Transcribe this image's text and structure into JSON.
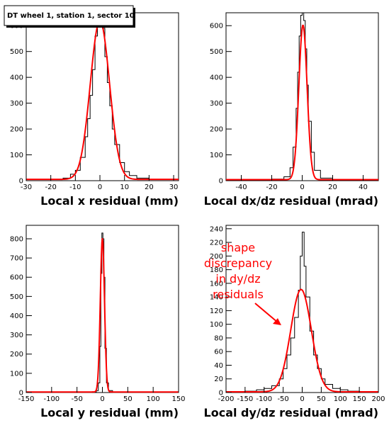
{
  "title": "DT wheel 1, station 1, sector 10",
  "annotation": {
    "lines": [
      "shape",
      "discrepancy",
      "in dy/dz",
      "residuals"
    ],
    "color": "#ff0000"
  },
  "colors": {
    "histogram": "#000000",
    "fit": "#ff0000"
  },
  "chart_data": [
    {
      "type": "histogram",
      "xlabel": "Local x residual (mm)",
      "xlim": [
        -30,
        32
      ],
      "ylim": [
        0,
        650
      ],
      "xticks": [
        -30,
        -20,
        -10,
        0,
        10,
        20,
        30
      ],
      "yticks": [
        0,
        100,
        200,
        300,
        400,
        500,
        600
      ],
      "series": [
        {
          "kind": "histogram",
          "x": [
            -30,
            -25,
            -20,
            -15,
            -12,
            -10,
            -8,
            -6,
            -5,
            -4,
            -3,
            -2,
            -1,
            0,
            1,
            2,
            3,
            4,
            5,
            6,
            8,
            10,
            12,
            15,
            20,
            25,
            30,
            32
          ],
          "y": [
            5,
            5,
            5,
            10,
            25,
            40,
            90,
            170,
            240,
            330,
            430,
            560,
            610,
            640,
            590,
            480,
            380,
            290,
            200,
            140,
            70,
            35,
            20,
            10,
            5,
            5,
            5,
            5
          ]
        },
        {
          "kind": "fit",
          "mu": 0,
          "sigma": 3.9,
          "amp": 615,
          "base": 5
        }
      ]
    },
    {
      "type": "histogram",
      "xlabel": "Local dx/dz residual (mrad)",
      "xlim": [
        -50,
        50
      ],
      "ylim": [
        0,
        650
      ],
      "xticks": [
        -40,
        -20,
        0,
        20,
        40
      ],
      "yticks": [
        0,
        100,
        200,
        300,
        400,
        500,
        600
      ],
      "series": [
        {
          "kind": "histogram",
          "x": [
            -50,
            -20,
            -12,
            -8,
            -6,
            -4,
            -3,
            -2,
            -1,
            0,
            1,
            2,
            3,
            4,
            6,
            8,
            12,
            20,
            50
          ],
          "y": [
            4,
            6,
            15,
            50,
            130,
            280,
            420,
            560,
            640,
            650,
            620,
            510,
            370,
            230,
            110,
            40,
            10,
            5,
            4
          ]
        },
        {
          "kind": "fit",
          "mu": 0.5,
          "sigma": 2.7,
          "amp": 598,
          "base": 4
        }
      ]
    },
    {
      "type": "histogram",
      "xlabel": "Local y residual (mm)",
      "xlim": [
        -150,
        150
      ],
      "ylim": [
        0,
        870
      ],
      "xticks": [
        -150,
        -100,
        -50,
        0,
        50,
        100,
        150
      ],
      "yticks": [
        0,
        100,
        200,
        300,
        400,
        500,
        600,
        700,
        800
      ],
      "series": [
        {
          "kind": "histogram",
          "x": [
            -150,
            -20,
            -12,
            -8,
            -5,
            -3,
            -1,
            1,
            3,
            5,
            8,
            12,
            20,
            150
          ],
          "y": [
            3,
            3,
            10,
            50,
            240,
            620,
            830,
            800,
            600,
            230,
            50,
            10,
            3,
            3
          ]
        },
        {
          "kind": "fit",
          "mu": 0,
          "sigma": 4.1,
          "amp": 800,
          "base": 3
        }
      ]
    },
    {
      "type": "histogram",
      "xlabel": "Local dy/dz residual (mrad)",
      "xlim": [
        -200,
        200
      ],
      "ylim": [
        0,
        245
      ],
      "xticks": [
        -200,
        -150,
        -100,
        -50,
        0,
        50,
        100,
        150,
        200
      ],
      "yticks": [
        0,
        20,
        40,
        60,
        80,
        100,
        120,
        140,
        160,
        180,
        200,
        220,
        240
      ],
      "series": [
        {
          "kind": "histogram",
          "x": [
            -200,
            -150,
            -120,
            -100,
            -80,
            -60,
            -50,
            -40,
            -30,
            -20,
            -10,
            -5,
            0,
            5,
            10,
            20,
            30,
            40,
            50,
            60,
            80,
            100,
            120,
            150,
            200
          ],
          "y": [
            1,
            2,
            4,
            6,
            10,
            20,
            35,
            55,
            80,
            110,
            150,
            200,
            235,
            185,
            140,
            90,
            55,
            35,
            20,
            12,
            6,
            4,
            2,
            1,
            1
          ]
        },
        {
          "kind": "fit",
          "mu": -3,
          "sigma": 27,
          "amp": 150,
          "base": 1
        }
      ]
    }
  ]
}
